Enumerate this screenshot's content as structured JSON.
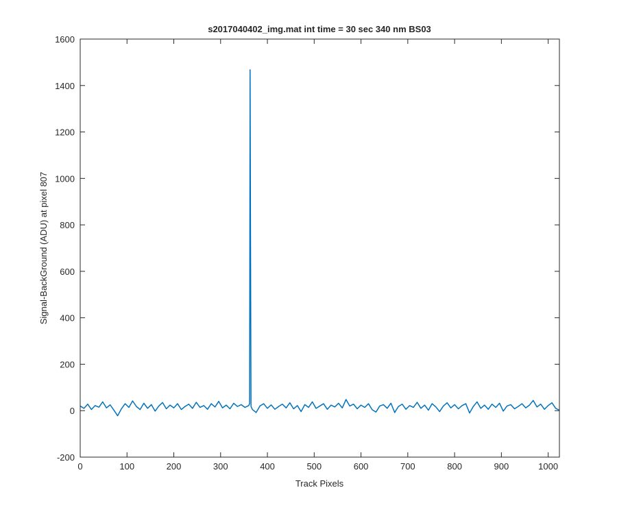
{
  "chart_data": {
    "type": "line",
    "title": "s2017040402_img.mat int time = 30 sec  340 nm BS03",
    "xlabel": "Track Pixels",
    "ylabel": "Signal-BackGround (ADU) at pixel 807",
    "xlim": [
      0,
      1024
    ],
    "ylim": [
      -200,
      1600
    ],
    "xticks": [
      0,
      100,
      200,
      300,
      400,
      500,
      600,
      700,
      800,
      900,
      1000
    ],
    "yticks": [
      -200,
      0,
      200,
      400,
      600,
      800,
      1000,
      1200,
      1400,
      1600
    ],
    "grid": false,
    "series": [
      {
        "color": "#0072bd",
        "x": [
          0,
          8,
          16,
          24,
          32,
          40,
          48,
          56,
          64,
          72,
          80,
          88,
          96,
          104,
          112,
          120,
          128,
          136,
          144,
          152,
          160,
          168,
          176,
          184,
          192,
          200,
          208,
          216,
          224,
          232,
          240,
          248,
          256,
          264,
          272,
          280,
          288,
          296,
          304,
          312,
          320,
          328,
          336,
          344,
          352,
          360,
          362,
          363,
          364,
          365,
          368,
          376,
          384,
          392,
          400,
          408,
          416,
          424,
          432,
          440,
          448,
          456,
          464,
          472,
          480,
          488,
          496,
          504,
          512,
          520,
          528,
          536,
          544,
          552,
          560,
          568,
          576,
          584,
          592,
          600,
          608,
          616,
          624,
          632,
          640,
          648,
          656,
          664,
          672,
          680,
          688,
          696,
          704,
          712,
          720,
          728,
          736,
          744,
          752,
          760,
          768,
          776,
          784,
          792,
          800,
          808,
          816,
          824,
          832,
          840,
          848,
          856,
          864,
          872,
          880,
          888,
          896,
          904,
          912,
          920,
          928,
          936,
          944,
          952,
          960,
          968,
          976,
          984,
          992,
          1000,
          1008,
          1016,
          1024
        ],
        "values": [
          20,
          10,
          28,
          5,
          22,
          15,
          38,
          12,
          25,
          2,
          -22,
          8,
          30,
          14,
          42,
          18,
          5,
          32,
          10,
          26,
          -2,
          20,
          35,
          8,
          24,
          12,
          30,
          5,
          18,
          28,
          10,
          36,
          14,
          22,
          6,
          30,
          16,
          40,
          12,
          24,
          8,
          32,
          18,
          26,
          14,
          22,
          30,
          1468,
          700,
          18,
          5,
          -8,
          20,
          30,
          10,
          25,
          6,
          18,
          28,
          12,
          34,
          8,
          22,
          -4,
          26,
          14,
          38,
          10,
          20,
          30,
          6,
          24,
          16,
          32,
          12,
          48,
          20,
          28,
          8,
          24,
          14,
          30,
          4,
          -6,
          20,
          26,
          10,
          32,
          -8,
          18,
          28,
          6,
          22,
          14,
          36,
          10,
          24,
          2,
          30,
          16,
          -4,
          20,
          34,
          12,
          26,
          8,
          22,
          30,
          -10,
          18,
          38,
          10,
          24,
          6,
          28,
          14,
          32,
          -2,
          20,
          26,
          8,
          18,
          30,
          12,
          24,
          44,
          16,
          28,
          6,
          22,
          34,
          10,
          2
        ]
      }
    ]
  }
}
